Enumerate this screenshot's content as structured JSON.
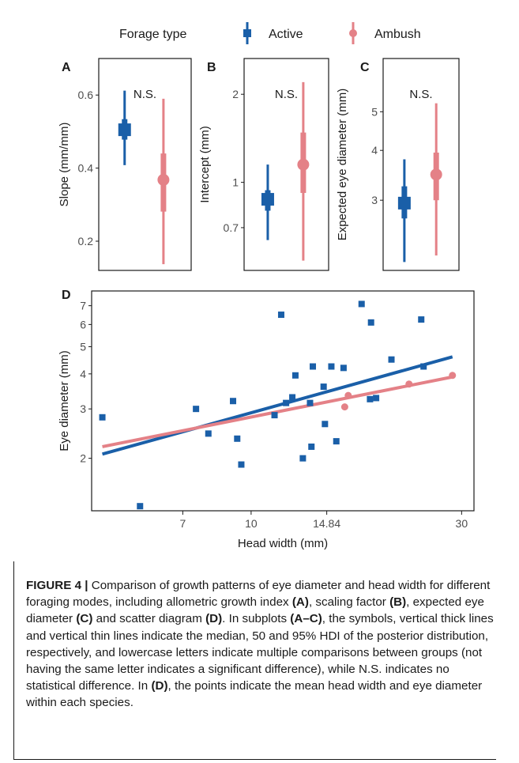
{
  "legend": {
    "title": "Forage type",
    "items": [
      {
        "label": "Active",
        "color": "#1a5fa8"
      },
      {
        "label": "Ambush",
        "color": "#e48187"
      }
    ]
  },
  "chart_data": [
    {
      "panel": "A",
      "type": "interval",
      "ylabel": "Slope (mm/mm)",
      "annotation": "N.S.",
      "ylim": [
        0.12,
        0.7
      ],
      "yticks": [
        0.2,
        0.4,
        0.6
      ],
      "ytick_labels": [
        "0.2",
        "0.4",
        "0.6"
      ],
      "series": [
        {
          "name": "Active",
          "median": 0.505,
          "hdi50": [
            0.478,
            0.534
          ],
          "hdi95": [
            0.408,
            0.612
          ]
        },
        {
          "name": "Ambush",
          "median": 0.368,
          "hdi50": [
            0.281,
            0.44
          ],
          "hdi95": [
            0.137,
            0.59
          ]
        }
      ]
    },
    {
      "panel": "B",
      "type": "interval",
      "yscale": "log",
      "ylabel": "Intercept (mm)",
      "annotation": "N.S.",
      "ylim": [
        0.5,
        2.65
      ],
      "yticks": [
        0.7,
        1,
        2
      ],
      "ytick_labels": [
        "0.7",
        "1",
        "2"
      ],
      "series": [
        {
          "name": "Active",
          "median": 0.875,
          "hdi50": [
            0.8,
            0.94
          ],
          "hdi95": [
            0.635,
            1.15
          ]
        },
        {
          "name": "Ambush",
          "median": 1.15,
          "hdi50": [
            0.92,
            1.48
          ],
          "hdi95": [
            0.54,
            2.2
          ]
        }
      ]
    },
    {
      "panel": "C",
      "type": "interval",
      "yscale": "log",
      "ylabel": "Expected eye diameter (mm)",
      "annotation": "N.S.",
      "ylim": [
        2.0,
        6.8
      ],
      "yticks": [
        3,
        4,
        5
      ],
      "ytick_labels": [
        "3",
        "4",
        "5"
      ],
      "series": [
        {
          "name": "Active",
          "median": 2.95,
          "hdi50": [
            2.7,
            3.25
          ],
          "hdi95": [
            2.1,
            3.8
          ]
        },
        {
          "name": "Ambush",
          "median": 3.48,
          "hdi50": [
            3.0,
            3.95
          ],
          "hdi95": [
            2.18,
            5.25
          ]
        }
      ]
    },
    {
      "panel": "D",
      "type": "scatter",
      "xscale": "log",
      "yscale": "log",
      "xlabel": "Head width (mm)",
      "ylabel": "Eye diameter (mm)",
      "xlim": [
        4.35,
        32
      ],
      "ylim": [
        1.3,
        7.9
      ],
      "xticks": [
        7,
        10,
        14.84,
        30
      ],
      "xtick_labels": [
        "7",
        "10",
        "14.84",
        "30"
      ],
      "yticks": [
        2,
        3,
        4,
        5,
        6,
        7
      ],
      "ytick_labels": [
        "2",
        "3",
        "4",
        "5",
        "6",
        "7"
      ],
      "series": [
        {
          "name": "Active",
          "marker": "square",
          "points": [
            [
              4.6,
              2.8
            ],
            [
              5.6,
              1.35
            ],
            [
              7.5,
              3.0
            ],
            [
              8.0,
              2.45
            ],
            [
              9.1,
              3.2
            ],
            [
              9.3,
              2.35
            ],
            [
              9.5,
              1.9
            ],
            [
              11.3,
              2.85
            ],
            [
              11.7,
              6.5
            ],
            [
              12.0,
              3.15
            ],
            [
              12.4,
              3.3
            ],
            [
              12.6,
              3.95
            ],
            [
              13.1,
              2.0
            ],
            [
              13.6,
              3.15
            ],
            [
              13.7,
              2.2
            ],
            [
              13.8,
              4.25
            ],
            [
              14.6,
              3.6
            ],
            [
              14.7,
              2.65
            ],
            [
              15.2,
              4.25
            ],
            [
              15.6,
              2.3
            ],
            [
              16.2,
              4.2
            ],
            [
              17.8,
              7.1
            ],
            [
              18.6,
              3.25
            ],
            [
              18.7,
              6.1
            ],
            [
              19.2,
              3.28
            ],
            [
              20.8,
              4.5
            ],
            [
              24.3,
              6.25
            ],
            [
              24.6,
              4.25
            ]
          ],
          "fit": [
            [
              4.6,
              2.07
            ],
            [
              28.6,
              4.6
            ]
          ]
        },
        {
          "name": "Ambush",
          "marker": "circle",
          "points": [
            [
              16.3,
              3.05
            ],
            [
              16.6,
              3.35
            ],
            [
              22.8,
              3.68
            ],
            [
              28.6,
              3.95
            ]
          ],
          "fit": [
            [
              4.6,
              2.2
            ],
            [
              28.6,
              3.9
            ]
          ]
        }
      ]
    }
  ],
  "caption": {
    "label": "FIGURE 4 |",
    "p1": " Comparison of growth patterns of eye diameter and head width for different foraging modes, including allometric growth index ",
    "rA": "(A)",
    "p2": ", scaling factor ",
    "rB": "(B)",
    "p3": ", expected eye diameter ",
    "rC": "(C)",
    "p4": " and scatter diagram ",
    "rD": "(D)",
    "p5": ". In subplots ",
    "rAC": "(A–C)",
    "p6": ", the symbols, vertical thick lines and vertical thin lines indicate the median, 50 and 95% HDI of the posterior distribution, respectively, and lowercase letters indicate multiple comparisons between groups (not having the same letter indicates a significant difference), while N.S. indicates no statistical difference. In ",
    "rD2": "(D)",
    "p7": ", the points indicate the mean head width and eye diameter within each species."
  }
}
